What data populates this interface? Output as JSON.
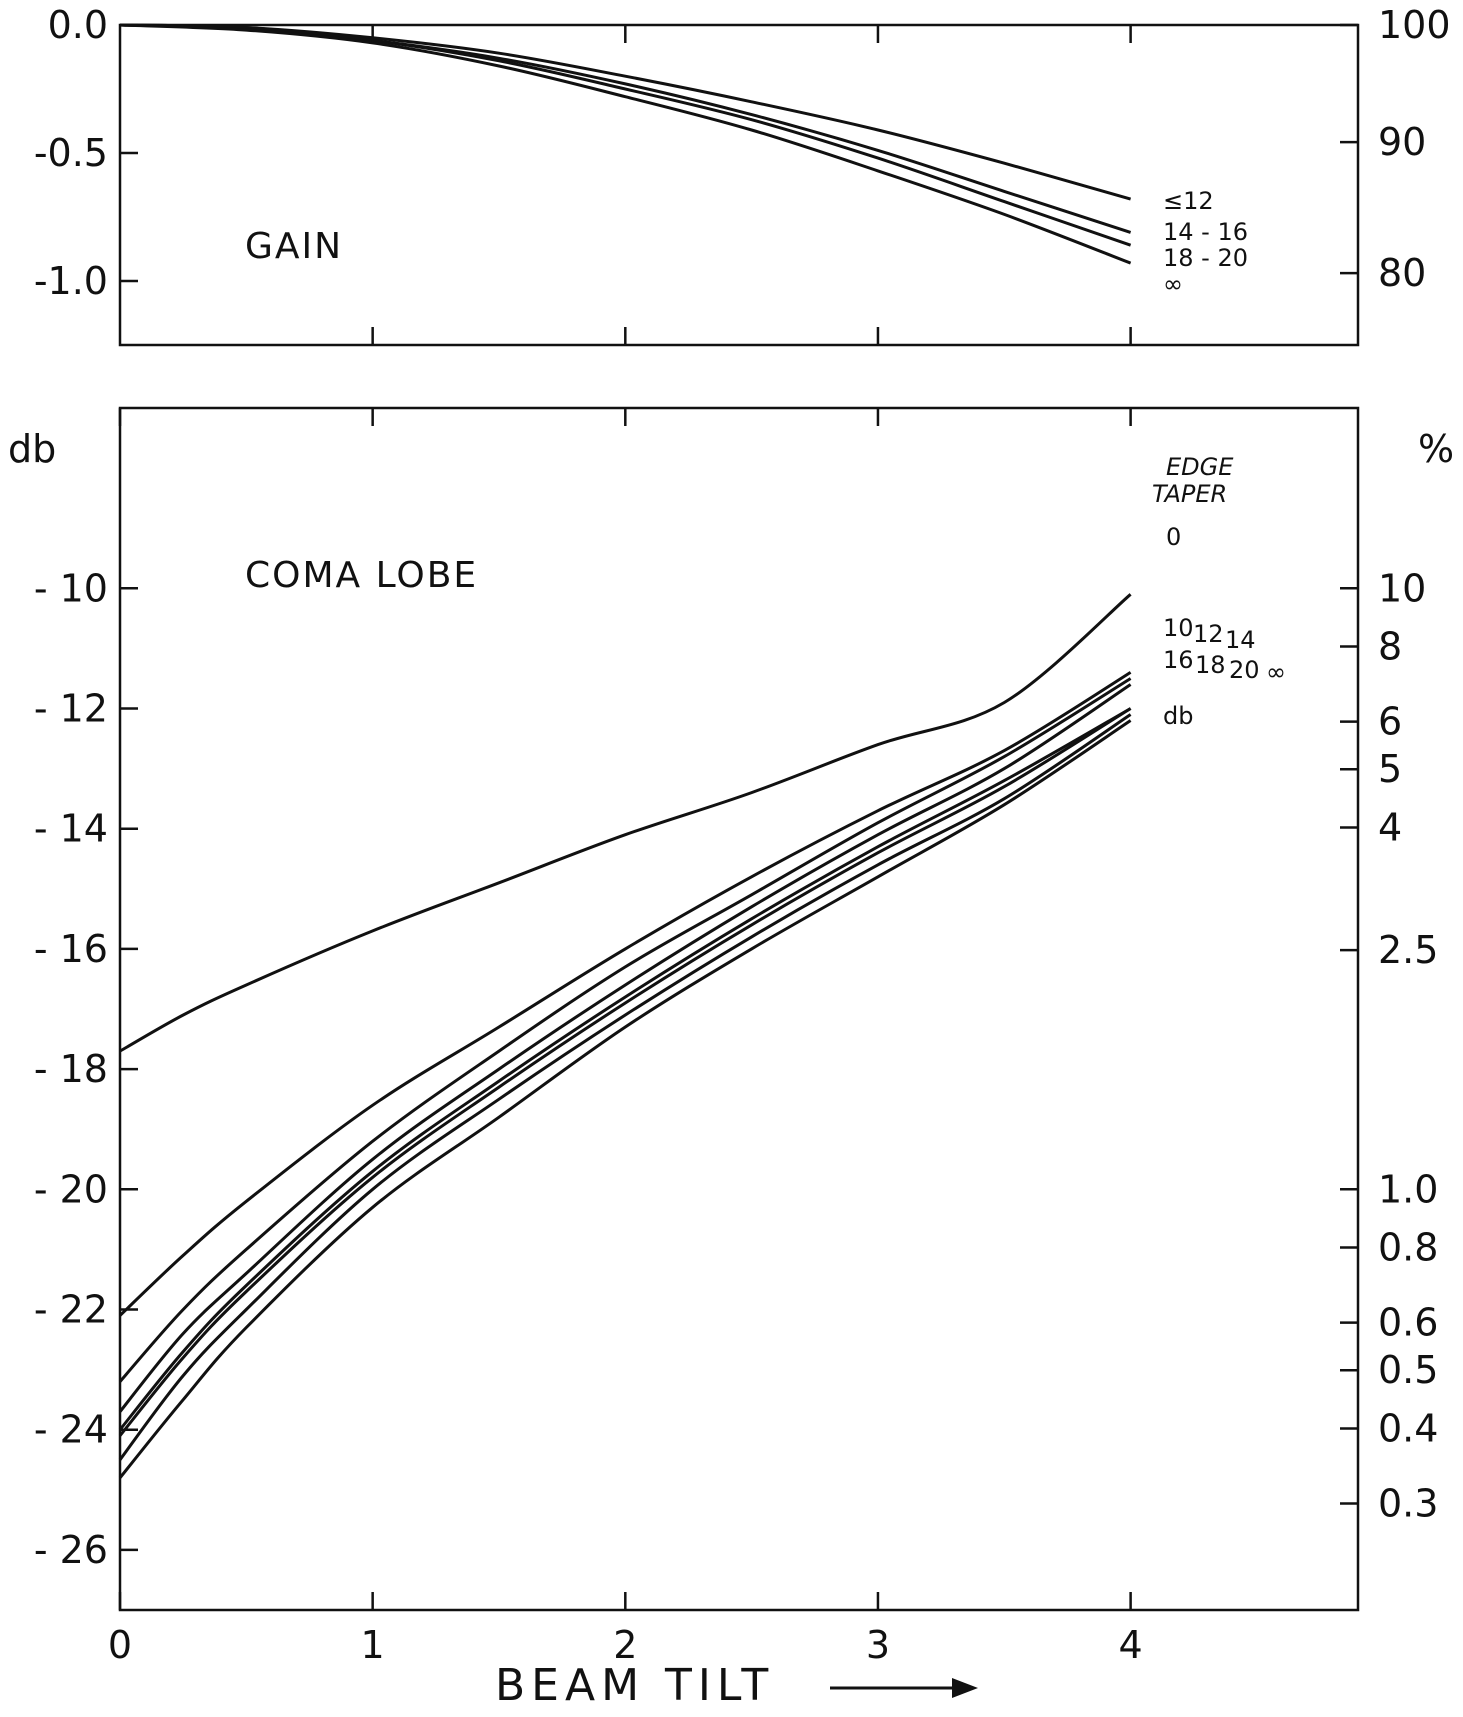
{
  "chart_data": [
    {
      "type": "line",
      "panel": "gain",
      "title": "GAIN",
      "ylabel_left": "",
      "ylabel_right": "",
      "xlim": [
        0,
        4.9
      ],
      "ylim_left": [
        -1.25,
        0.0
      ],
      "yticks_left": [
        0.0,
        -0.5,
        -1.0
      ],
      "ytick_labels_left": [
        "0.0",
        "-0.5",
        "-1.0"
      ],
      "yticks_right_at_db": [
        0.0,
        -0.4576,
        -0.9691
      ],
      "ytick_labels_right": [
        "100",
        "90",
        "80"
      ],
      "xticks": [
        1,
        2,
        3,
        4
      ],
      "series": [
        {
          "name": "≤12",
          "x": [
            0,
            0.5,
            1,
            1.5,
            2,
            2.5,
            3,
            3.5,
            4
          ],
          "y": [
            0,
            -0.01,
            -0.05,
            -0.11,
            -0.2,
            -0.3,
            -0.41,
            -0.54,
            -0.68
          ]
        },
        {
          "name": "14 - 16",
          "x": [
            0,
            0.5,
            1,
            1.5,
            2,
            2.5,
            3,
            3.5,
            4
          ],
          "y": [
            0,
            -0.01,
            -0.06,
            -0.13,
            -0.23,
            -0.35,
            -0.49,
            -0.65,
            -0.81
          ]
        },
        {
          "name": "18 - 20",
          "x": [
            0,
            0.5,
            1,
            1.5,
            2,
            2.5,
            3,
            3.5,
            4
          ],
          "y": [
            0,
            -0.01,
            -0.06,
            -0.14,
            -0.25,
            -0.37,
            -0.52,
            -0.69,
            -0.86
          ]
        },
        {
          "name": "∞",
          "x": [
            0,
            0.5,
            1,
            1.5,
            2,
            2.5,
            3,
            3.5,
            4
          ],
          "y": [
            0,
            -0.02,
            -0.07,
            -0.16,
            -0.28,
            -0.41,
            -0.57,
            -0.74,
            -0.93
          ]
        }
      ]
    },
    {
      "type": "line",
      "panel": "coma",
      "title": "COMA LOBE",
      "ylabel_left": "db",
      "ylabel_right": "%",
      "legend_title": [
        "EDGE",
        "TAPER"
      ],
      "legend_unit": "db",
      "xlabel": "BEAM TILT",
      "xlim": [
        0,
        4.9
      ],
      "ylim_left": [
        -27.0,
        -7.0
      ],
      "yticks_left": [
        -10,
        -12,
        -14,
        -16,
        -18,
        -20,
        -22,
        -24,
        -26
      ],
      "ytick_labels_left": [
        "- 10",
        "- 12",
        "- 14",
        "- 16",
        "- 18",
        "- 20",
        "- 22",
        "- 24",
        "- 26"
      ],
      "yticks_right_at_db": [
        -10.0,
        -10.9691,
        -12.2185,
        -13.0103,
        -13.9794,
        -16.0206,
        -20.0,
        -20.9691,
        -22.2185,
        -23.0103,
        -23.9794,
        -25.2288
      ],
      "ytick_labels_right": [
        "10",
        "8",
        "6",
        "5",
        "4",
        "2.5",
        "1.0",
        "0.8",
        "0.6",
        "0.5",
        "0.4",
        "0.3"
      ],
      "xticks": [
        0,
        1,
        2,
        3,
        4
      ],
      "xtick_labels": [
        "0",
        "1",
        "2",
        "3",
        "4"
      ],
      "series": [
        {
          "name": "0",
          "x": [
            0,
            0.25,
            0.5,
            1,
            1.5,
            2,
            2.5,
            3,
            3.5,
            4
          ],
          "y": [
            -17.7,
            -17.1,
            -16.6,
            -15.7,
            -14.9,
            -14.1,
            -13.4,
            -12.6,
            -11.9,
            -10.1
          ]
        },
        {
          "name": "10",
          "x": [
            0,
            0.25,
            0.5,
            1,
            1.5,
            2,
            2.5,
            3,
            3.5,
            4
          ],
          "y": [
            -22.1,
            -21.1,
            -20.2,
            -18.6,
            -17.3,
            -16.0,
            -14.8,
            -13.7,
            -12.7,
            -11.4
          ]
        },
        {
          "name": "12",
          "x": [
            0,
            0.25,
            0.5,
            1,
            1.5,
            2,
            2.5,
            3,
            3.5,
            4
          ],
          "y": [
            -23.2,
            -22.0,
            -21.0,
            -19.2,
            -17.7,
            -16.3,
            -15.1,
            -13.9,
            -12.8,
            -11.5
          ]
        },
        {
          "name": "14",
          "x": [
            0,
            0.25,
            0.5,
            1,
            1.5,
            2,
            2.5,
            3,
            3.5,
            4
          ],
          "y": [
            -23.7,
            -22.4,
            -21.4,
            -19.5,
            -18.0,
            -16.6,
            -15.3,
            -14.1,
            -13.0,
            -11.6
          ]
        },
        {
          "name": "16",
          "x": [
            0,
            0.25,
            0.5,
            1,
            1.5,
            2,
            2.5,
            3,
            3.5,
            4
          ],
          "y": [
            -24.0,
            -22.7,
            -21.6,
            -19.7,
            -18.2,
            -16.8,
            -15.5,
            -14.3,
            -13.2,
            -12.0
          ]
        },
        {
          "name": "18",
          "x": [
            0,
            0.25,
            0.5,
            1,
            1.5,
            2,
            2.5,
            3,
            3.5,
            4
          ],
          "y": [
            -24.1,
            -22.8,
            -21.7,
            -19.8,
            -18.3,
            -16.9,
            -15.6,
            -14.4,
            -13.3,
            -12.0
          ]
        },
        {
          "name": "20",
          "x": [
            0,
            0.25,
            0.5,
            1,
            1.5,
            2,
            2.5,
            3,
            3.5,
            4
          ],
          "y": [
            -24.5,
            -23.1,
            -22.0,
            -20.0,
            -18.5,
            -17.1,
            -15.8,
            -14.6,
            -13.5,
            -12.1
          ]
        },
        {
          "name": "∞",
          "x": [
            0,
            0.25,
            0.5,
            1,
            1.5,
            2,
            2.5,
            3,
            3.5,
            4
          ],
          "y": [
            -24.8,
            -23.5,
            -22.3,
            -20.3,
            -18.8,
            -17.3,
            -16.0,
            -14.8,
            -13.6,
            -12.2
          ]
        }
      ]
    }
  ]
}
